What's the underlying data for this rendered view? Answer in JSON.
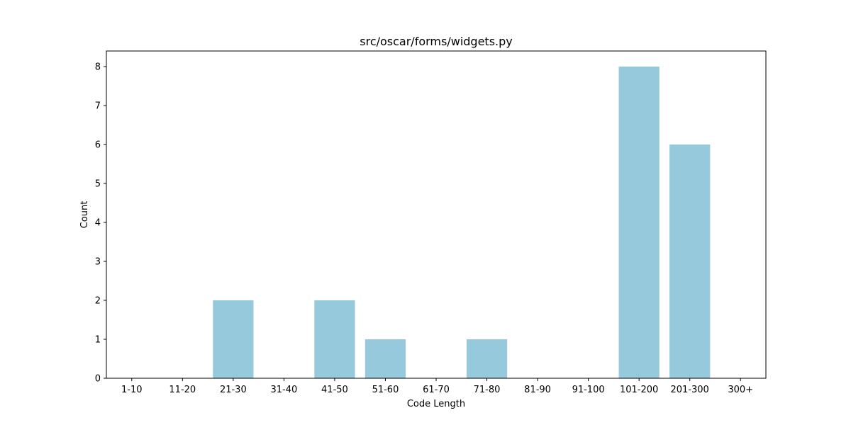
{
  "chart_data": {
    "type": "bar",
    "title": "src/oscar/forms/widgets.py",
    "xlabel": "Code Length",
    "ylabel": "Count",
    "categories": [
      "1-10",
      "11-20",
      "21-30",
      "31-40",
      "41-50",
      "51-60",
      "61-70",
      "71-80",
      "81-90",
      "91-100",
      "101-200",
      "201-300",
      "300+"
    ],
    "values": [
      0,
      0,
      2,
      0,
      2,
      1,
      0,
      1,
      0,
      0,
      8,
      6,
      0
    ],
    "ylim": [
      0,
      8.4
    ],
    "yticks": [
      0,
      1,
      2,
      3,
      4,
      5,
      6,
      7,
      8
    ],
    "bar_color": "#96c9dc",
    "grid": false,
    "legend": "none"
  }
}
